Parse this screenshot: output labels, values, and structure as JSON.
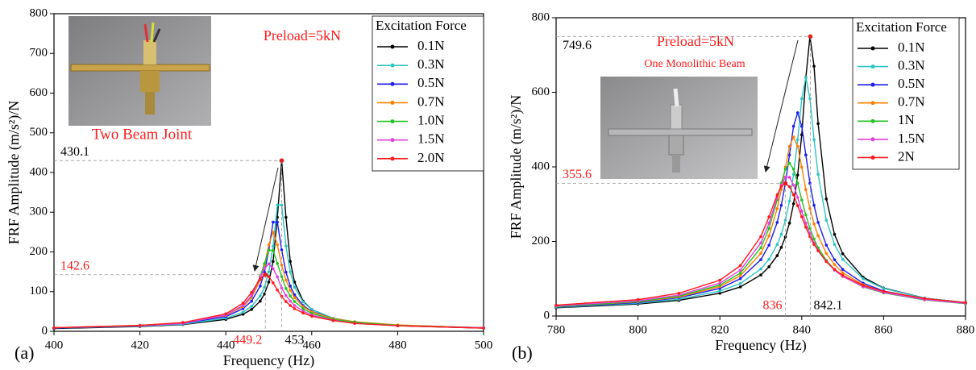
{
  "chart_data": [
    {
      "type": "line",
      "panel_label": "(a)",
      "x_label": "Frequency (Hz)",
      "y_label": "FRF Amplitude (m/s²)/N",
      "annotations": [
        "Preload=5kN",
        "Two Beam Joint"
      ],
      "legend_title": "Excitation Force",
      "legend": "upper right",
      "xlim": [
        400,
        500
      ],
      "ylim": [
        0,
        800
      ],
      "xticks": [
        400,
        420,
        440,
        460,
        480,
        500
      ],
      "yticks": [
        0,
        100,
        200,
        300,
        400,
        500,
        600,
        700,
        800
      ],
      "x": [
        400,
        420,
        430,
        440,
        444,
        446,
        448,
        449,
        450,
        451,
        452,
        453,
        454,
        455,
        456,
        458,
        460,
        465,
        470,
        480,
        500
      ],
      "series": [
        {
          "name": "0.1N",
          "color": "#000000",
          "values": [
            7,
            12,
            17,
            30,
            43,
            55,
            76,
            94,
            124,
            176,
            287,
            430,
            287,
            176,
            124,
            76,
            55,
            32,
            23,
            14,
            8
          ]
        },
        {
          "name": "0.3N",
          "color": "#2ec4c4",
          "values": [
            8,
            13,
            18,
            33,
            48,
            63,
            89,
            111,
            150,
            215,
            318,
            318,
            215,
            150,
            111,
            74,
            55,
            33,
            24,
            15,
            9
          ]
        },
        {
          "name": "0.5N",
          "color": "#1c1cf0",
          "values": [
            8,
            14,
            20,
            37,
            57,
            76,
            114,
            149,
            205,
            275,
            275,
            205,
            149,
            114,
            92,
            65,
            50,
            32,
            23,
            15,
            9
          ]
        },
        {
          "name": "0.7N",
          "color": "#ff8000",
          "values": [
            9,
            15,
            21,
            40,
            62,
            85,
            129,
            167,
            218,
            250,
            218,
            167,
            129,
            103,
            85,
            62,
            49,
            32,
            24,
            16,
            9
          ]
        },
        {
          "name": "1.0N",
          "color": "#22c322",
          "values": [
            9,
            14,
            21,
            41,
            65,
            89,
            138,
            171,
            204,
            204,
            171,
            138,
            108,
            89,
            75,
            57,
            45,
            30,
            23,
            15,
            9
          ]
        },
        {
          "name": "1.5N",
          "color": "#e040e0",
          "values": [
            9,
            14,
            20,
            41,
            65,
            90,
            137,
            158,
            170,
            158,
            137,
            109,
            90,
            76,
            65,
            51,
            41,
            28,
            20,
            14,
            9
          ]
        },
        {
          "name": "2.0N",
          "color": "#ff1a1a",
          "values": [
            9,
            15,
            22,
            44,
            71,
            98,
            132,
            142.6,
            138,
            122,
            104,
            88,
            75,
            65,
            57,
            46,
            38,
            27,
            20,
            14,
            8
          ]
        }
      ],
      "markers": [
        {
          "x": 453,
          "y": 430.1,
          "color": "#000000"
        },
        {
          "x": 449.2,
          "y": 142.6,
          "color": "#ff1a1a"
        }
      ]
    },
    {
      "type": "line",
      "panel_label": "(b)",
      "x_label": "Frequency (Hz)",
      "y_label": "FRF Amplitude (m/s²)/N",
      "annotations": [
        "Preload=5kN",
        "One Monolithic Beam"
      ],
      "legend_title": "Excitation Force",
      "legend": "upper right",
      "xlim": [
        780,
        880
      ],
      "ylim": [
        0,
        800
      ],
      "xticks": [
        780,
        800,
        820,
        840,
        860,
        880
      ],
      "yticks": [
        0,
        200,
        400,
        600,
        800
      ],
      "x": [
        780,
        800,
        810,
        820,
        825,
        830,
        832,
        834,
        835,
        836,
        837,
        838,
        839,
        840,
        841,
        842,
        843,
        844,
        846,
        848,
        850,
        855,
        860,
        870,
        880
      ],
      "series": [
        {
          "name": "0.1N",
          "color": "#000000",
          "values": [
            22,
            32,
            42,
            61,
            78,
            110,
            132,
            162,
            184,
            212,
            249,
            301,
            378,
            486,
            640,
            749.6,
            670,
            516,
            314,
            219,
            167,
            104,
            75,
            48,
            36
          ]
        },
        {
          "name": "0.3N",
          "color": "#2ec4c4",
          "values": [
            23,
            34,
            45,
            67,
            87,
            126,
            152,
            192,
            219,
            257,
            308,
            380,
            473,
            583,
            640,
            583,
            473,
            380,
            257,
            192,
            152,
            100,
            74,
            48,
            36
          ]
        },
        {
          "name": "0.5N",
          "color": "#1c1cf0",
          "values": [
            24,
            36,
            49,
            74,
            100,
            151,
            190,
            251,
            297,
            356,
            432,
            509,
            545,
            509,
            432,
            356,
            297,
            251,
            190,
            151,
            125,
            88,
            67,
            46,
            34
          ]
        },
        {
          "name": "0.7N",
          "color": "#ff8000",
          "values": [
            25,
            38,
            51,
            79,
            108,
            168,
            215,
            288,
            339,
            399,
            455,
            480,
            455,
            399,
            339,
            288,
            247,
            215,
            168,
            138,
            116,
            84,
            65,
            45,
            34
          ]
        },
        {
          "name": "1N",
          "color": "#22c322",
          "values": [
            25,
            39,
            53,
            83,
            115,
            183,
            235,
            311,
            356,
            394,
            410,
            394,
            356,
            311,
            271,
            235,
            207,
            183,
            149,
            125,
            107,
            78,
            62,
            43,
            33
          ]
        },
        {
          "name": "1.5N",
          "color": "#e040e0",
          "values": [
            27,
            41,
            56,
            88,
            123,
            196,
            249,
            318,
            351,
            372,
            372,
            351,
            318,
            281,
            249,
            221,
            196,
            176,
            146,
            123,
            106,
            79,
            63,
            44,
            34
          ]
        },
        {
          "name": "2N",
          "color": "#ff1a1a",
          "values": [
            29,
            44,
            61,
            96,
            135,
            213,
            266,
            325,
            347,
            355.6,
            347,
            325,
            296,
            266,
            238,
            213,
            192,
            175,
            146,
            125,
            109,
            82,
            66,
            47,
            36
          ]
        }
      ],
      "markers": [
        {
          "x": 842.1,
          "y": 749.6,
          "color": "#000000"
        },
        {
          "x": 836,
          "y": 355.6,
          "color": "#ff1a1a"
        }
      ]
    }
  ]
}
